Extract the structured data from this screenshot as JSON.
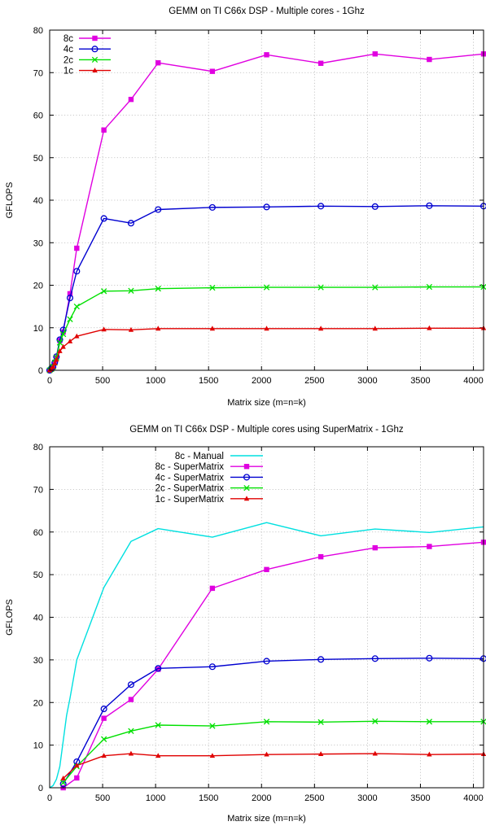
{
  "chart_data": [
    {
      "type": "line",
      "title": "GEMM on TI C66x DSP - Multiple cores - 1Ghz",
      "xlabel": "Matrix size (m=n=k)",
      "ylabel": "GFLOPS",
      "xlim": [
        0,
        4096
      ],
      "ylim": [
        0,
        80
      ],
      "xticks": [
        0,
        500,
        1000,
        1500,
        2000,
        2500,
        3000,
        3500,
        4000
      ],
      "yticks": [
        0,
        10,
        20,
        30,
        40,
        50,
        60,
        70,
        80
      ],
      "grid": true,
      "legend_position": "top-left",
      "series": [
        {
          "name": "8c",
          "color": "#e000e0",
          "marker": "square",
          "x": [
            0,
            16,
            32,
            48,
            64,
            96,
            128,
            192,
            256,
            512,
            768,
            1024,
            1536,
            2048,
            2560,
            3072,
            3584,
            4096
          ],
          "y": [
            0,
            0.3,
            0.8,
            1.8,
            3,
            7,
            9,
            18,
            28.7,
            56.5,
            63.7,
            72.3,
            70.3,
            74.2,
            72.2,
            74.4,
            73.1,
            74.4
          ]
        },
        {
          "name": "4c",
          "color": "#0000d0",
          "marker": "circle",
          "x": [
            0,
            16,
            32,
            48,
            64,
            96,
            128,
            192,
            256,
            512,
            768,
            1024,
            1536,
            2048,
            2560,
            3072,
            3584,
            4096
          ],
          "y": [
            0,
            0.3,
            0.8,
            1.8,
            3.2,
            7.2,
            9.5,
            17,
            23.3,
            35.7,
            34.6,
            37.8,
            38.3,
            38.4,
            38.6,
            38.5,
            38.7,
            38.6
          ]
        },
        {
          "name": "2c",
          "color": "#00e000",
          "marker": "x",
          "x": [
            0,
            16,
            32,
            48,
            64,
            96,
            128,
            192,
            256,
            512,
            768,
            1024,
            1536,
            2048,
            2560,
            3072,
            3584,
            4096
          ],
          "y": [
            0,
            0.3,
            0.8,
            1.8,
            3,
            6.5,
            8.5,
            12,
            15,
            18.6,
            18.7,
            19.2,
            19.4,
            19.5,
            19.5,
            19.5,
            19.6,
            19.6
          ]
        },
        {
          "name": "1c",
          "color": "#e00000",
          "marker": "triangle",
          "x": [
            0,
            16,
            32,
            48,
            64,
            96,
            128,
            192,
            256,
            512,
            768,
            1024,
            1536,
            2048,
            2560,
            3072,
            3584,
            4096
          ],
          "y": [
            0,
            0.3,
            0.8,
            1.6,
            2.5,
            4.5,
            5.5,
            6.8,
            8,
            9.6,
            9.5,
            9.8,
            9.8,
            9.8,
            9.8,
            9.8,
            9.9,
            9.9
          ]
        }
      ]
    },
    {
      "type": "line",
      "title": "GEMM on TI C66x DSP - Multiple cores using SuperMatrix - 1Ghz",
      "xlabel": "Matrix size (m=n=k)",
      "ylabel": "GFLOPS",
      "xlim": [
        0,
        4096
      ],
      "ylim": [
        0,
        80
      ],
      "xticks": [
        0,
        500,
        1000,
        1500,
        2000,
        2500,
        3000,
        3500,
        4000
      ],
      "yticks": [
        0,
        10,
        20,
        30,
        40,
        50,
        60,
        70,
        80
      ],
      "grid": true,
      "legend_position": "top-left",
      "series": [
        {
          "name": "8c - Manual",
          "color": "#00e0e0",
          "marker": "none",
          "x": [
            0,
            32,
            64,
            96,
            128,
            160,
            192,
            256,
            512,
            768,
            1024,
            1536,
            2048,
            2560,
            3072,
            3584,
            4096
          ],
          "y": [
            0,
            0.5,
            2,
            5,
            11,
            17,
            21,
            30,
            47,
            57.8,
            60.8,
            58.8,
            62.2,
            59.1,
            60.7,
            59.9,
            61.2
          ]
        },
        {
          "name": "8c - SuperMatrix",
          "color": "#e000e0",
          "marker": "square",
          "x": [
            128,
            256,
            512,
            768,
            1024,
            1536,
            2048,
            2560,
            3072,
            3584,
            4096
          ],
          "y": [
            0,
            2.3,
            16.3,
            20.7,
            27.8,
            46.8,
            51.2,
            54.2,
            56.3,
            56.6,
            57.6
          ]
        },
        {
          "name": "4c - SuperMatrix",
          "color": "#0000d0",
          "marker": "circle",
          "x": [
            128,
            256,
            512,
            768,
            1024,
            1536,
            2048,
            2560,
            3072,
            3584,
            4096
          ],
          "y": [
            0.9,
            6.1,
            18.5,
            24.2,
            28,
            28.4,
            29.7,
            30.1,
            30.3,
            30.4,
            30.3
          ]
        },
        {
          "name": "2c - SuperMatrix",
          "color": "#00e000",
          "marker": "x",
          "x": [
            128,
            256,
            512,
            768,
            1024,
            1536,
            2048,
            2560,
            3072,
            3584,
            4096
          ],
          "y": [
            1.2,
            5,
            11.4,
            13.3,
            14.7,
            14.5,
            15.5,
            15.4,
            15.6,
            15.5,
            15.5
          ]
        },
        {
          "name": "1c - SuperMatrix",
          "color": "#e00000",
          "marker": "triangle",
          "x": [
            128,
            256,
            512,
            768,
            1024,
            1536,
            2048,
            2560,
            3072,
            3584,
            4096
          ],
          "y": [
            2.2,
            5.2,
            7.5,
            8,
            7.5,
            7.5,
            7.8,
            7.9,
            8,
            7.8,
            7.9
          ]
        }
      ]
    }
  ]
}
